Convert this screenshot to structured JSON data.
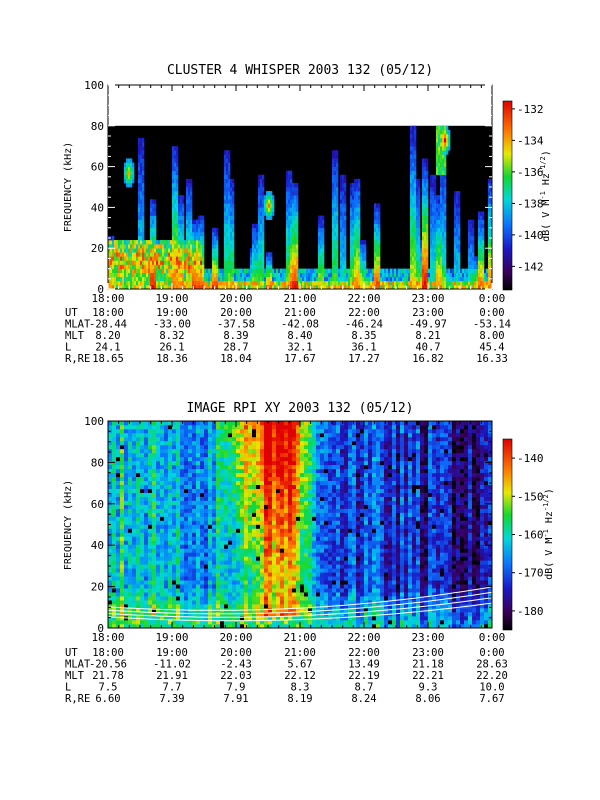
{
  "chart_data": [
    {
      "type": "heatmap",
      "title": "CLUSTER 4 WHISPER 2003 132 (05/12)",
      "ylabel": "FREQUENCY (kHz)",
      "ylim": [
        0,
        100
      ],
      "y_ticks": [
        "0",
        "20",
        "40",
        "60",
        "80",
        "100"
      ],
      "x_ticks": [
        "18:00",
        "19:00",
        "20:00",
        "21:00",
        "22:00",
        "23:00",
        "0:00"
      ],
      "data_freq_max_khz": 80,
      "colorbar": {
        "label_parts": [
          "dB( V M",
          "-1",
          " Hz",
          "-1/2",
          ")"
        ],
        "range": [
          -143.5,
          -131.5
        ],
        "ticks": [
          "-132",
          "-134",
          "-136",
          "-138",
          "-140",
          "-142"
        ]
      },
      "ephemeris": [
        {
          "label": "UT",
          "values": [
            "18:00",
            "19:00",
            "20:00",
            "21:00",
            "22:00",
            "23:00",
            "0:00"
          ]
        },
        {
          "label": "MLAT",
          "values": [
            "-28.44",
            "-33.00",
            "-37.58",
            "-42.08",
            "-46.24",
            "-49.97",
            "-53.14"
          ]
        },
        {
          "label": "MLT",
          "values": [
            "8.20",
            "8.32",
            "8.39",
            "8.40",
            "8.35",
            "8.21",
            "8.00"
          ]
        },
        {
          "label": "L",
          "values": [
            "24.1",
            "26.1",
            "28.7",
            "32.1",
            "36.1",
            "40.7",
            "45.4"
          ]
        },
        {
          "label": "R,RE",
          "values": [
            "18.65",
            "18.36",
            "18.04",
            "17.67",
            "17.27",
            "16.82",
            "16.33"
          ]
        }
      ]
    },
    {
      "type": "heatmap",
      "title": "IMAGE RPI XY 2003 132 (05/12)",
      "ylabel": "FREQUENCY (kHz)",
      "ylim": [
        0,
        100
      ],
      "y_ticks": [
        "0",
        "20",
        "40",
        "60",
        "80",
        "100"
      ],
      "x_ticks": [
        "18:00",
        "19:00",
        "20:00",
        "21:00",
        "22:00",
        "23:00",
        "0:00"
      ],
      "colorbar": {
        "label_parts": [
          "dB( V M",
          "-1",
          " Hz",
          "-1/2",
          ")"
        ],
        "range": [
          -185,
          -135
        ],
        "ticks": [
          "-140",
          "-150",
          "-160",
          "-170",
          "-180"
        ]
      },
      "ephemeris": [
        {
          "label": "UT",
          "values": [
            "18:00",
            "19:00",
            "20:00",
            "21:00",
            "22:00",
            "23:00",
            "0:00"
          ]
        },
        {
          "label": "MLAT",
          "values": [
            "-20.56",
            "-11.02",
            "-2.43",
            "5.67",
            "13.49",
            "21.18",
            "28.63"
          ]
        },
        {
          "label": "MLT",
          "values": [
            "21.78",
            "21.91",
            "22.03",
            "22.12",
            "22.19",
            "22.21",
            "22.20"
          ]
        },
        {
          "label": "L",
          "values": [
            "7.5",
            "7.7",
            "7.9",
            "8.3",
            "8.7",
            "9.3",
            "10.0"
          ]
        },
        {
          "label": "R,RE",
          "values": [
            "6.60",
            "7.39",
            "7.91",
            "8.19",
            "8.24",
            "8.06",
            "7.67"
          ]
        }
      ]
    }
  ]
}
